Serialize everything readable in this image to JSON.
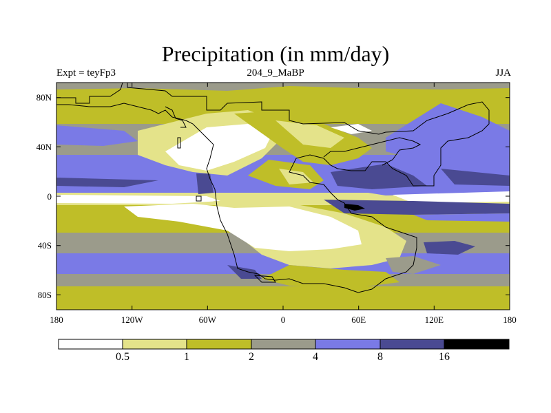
{
  "title": "Precipitation (in mm/day)",
  "subtitle_left": "Expt = teyFp3",
  "subtitle_center": "204_9_MaBP",
  "subtitle_right": "JJA",
  "axes": {
    "x_ticks": [
      "180",
      "120W",
      "60W",
      "0",
      "60E",
      "120E",
      "180"
    ],
    "y_ticks": [
      "80N",
      "40N",
      "0",
      "40S",
      "80S"
    ]
  },
  "colorbar": {
    "labels": [
      "0.5",
      "1",
      "2",
      "4",
      "8",
      "16"
    ],
    "colors": [
      "#ffffff",
      "#e4e38a",
      "#bfbe28",
      "#9b9b8b",
      "#7a7ae6",
      "#4a4a92",
      "#000000"
    ]
  },
  "palette": {
    "white": "#ffffff",
    "pale_yellow": "#e4e38a",
    "olive": "#bfbe28",
    "gray": "#9b9b8b",
    "blue": "#7a7ae6",
    "navy": "#4a4a92",
    "black": "#000000"
  }
}
